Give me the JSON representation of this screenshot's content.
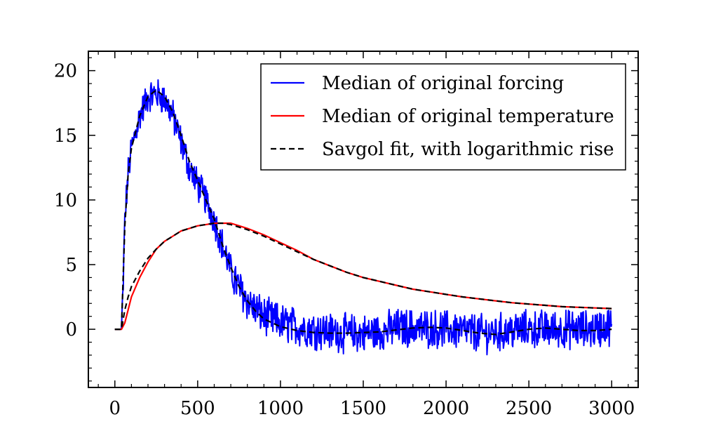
{
  "chart_data": {
    "type": "line",
    "title": "",
    "xlabel": "",
    "ylabel": "",
    "xlim": [
      -160,
      3160
    ],
    "ylim": [
      -4.5,
      21.5
    ],
    "x_ticks": [
      0,
      500,
      1000,
      1500,
      2000,
      2500,
      3000
    ],
    "x_tick_labels": [
      "0",
      "500",
      "1000",
      "1500",
      "2000",
      "2500",
      "3000"
    ],
    "y_ticks": [
      0,
      5,
      10,
      15,
      20
    ],
    "y_tick_labels": [
      "0",
      "5",
      "10",
      "15",
      "20"
    ],
    "grid": false,
    "legend_position": "top-right",
    "series": [
      {
        "name": "Median of original forcing",
        "color": "#0000ff",
        "style": "solid",
        "noisy": true,
        "x": [
          0,
          40,
          50,
          60,
          80,
          100,
          150,
          200,
          250,
          300,
          350,
          400,
          450,
          500,
          550,
          600,
          650,
          700,
          750,
          800,
          850,
          900,
          1000,
          1100,
          1200,
          1300,
          1400,
          1500,
          1600,
          1700,
          1800,
          1900,
          2000,
          2100,
          2200,
          2300,
          2400,
          2500,
          2600,
          2700,
          2800,
          2900,
          3000
        ],
        "y": [
          0,
          0,
          3,
          8.5,
          12,
          14,
          16.5,
          18,
          18.2,
          17.8,
          16.5,
          14.5,
          12.5,
          11.2,
          10,
          8.5,
          6.5,
          4.5,
          3.2,
          2.2,
          1.5,
          1,
          0.5,
          0.2,
          0,
          -0.2,
          -0.3,
          -0.35,
          -0.2,
          0.1,
          0.1,
          0.05,
          0,
          -0.1,
          -0.3,
          -0.3,
          -0.1,
          0,
          0,
          0,
          0,
          0,
          0.3
        ]
      },
      {
        "name": "Median of original temperature",
        "color": "#ff0000",
        "style": "solid",
        "noisy": false,
        "x": [
          0,
          40,
          60,
          80,
          100,
          150,
          200,
          250,
          300,
          350,
          400,
          450,
          500,
          550,
          600,
          650,
          700,
          750,
          800,
          900,
          1000,
          1100,
          1200,
          1300,
          1400,
          1500,
          1600,
          1700,
          1800,
          1900,
          2000,
          2100,
          2200,
          2300,
          2400,
          2500,
          2600,
          2700,
          2800,
          2900,
          3000
        ],
        "y": [
          0,
          0,
          0.5,
          1.5,
          2.5,
          4,
          5.2,
          6.2,
          6.8,
          7.2,
          7.6,
          7.8,
          8,
          8.1,
          8.2,
          8.2,
          8.2,
          8,
          7.8,
          7.3,
          6.7,
          6.1,
          5.4,
          4.9,
          4.4,
          4,
          3.7,
          3.4,
          3.1,
          2.9,
          2.7,
          2.5,
          2.35,
          2.2,
          2.05,
          1.95,
          1.85,
          1.75,
          1.7,
          1.65,
          1.6
        ]
      },
      {
        "name": "Savgol fit, with logarithmic rise",
        "color": "#000000",
        "style": "dashed",
        "noisy": false,
        "x": [
          0,
          40,
          60,
          80,
          100,
          150,
          200,
          250,
          300,
          350,
          400,
          450,
          500,
          550,
          600,
          650,
          700,
          750,
          800,
          850,
          900,
          1000,
          1100,
          1200,
          1300,
          1400,
          1500,
          1600,
          1700,
          1800,
          1900,
          2000,
          2100,
          2200,
          2300,
          2400,
          2500,
          2600,
          2700,
          2800,
          2900,
          3000
        ],
        "y": [
          0,
          0,
          8,
          12,
          14,
          16.5,
          18,
          18.5,
          18,
          16.8,
          15,
          13,
          11.5,
          10,
          8.5,
          6.5,
          4.8,
          3.3,
          2.2,
          1.4,
          0.8,
          0.2,
          -0.1,
          -0.25,
          -0.3,
          -0.3,
          -0.25,
          -0.2,
          -0.05,
          0.1,
          0.15,
          0.1,
          -0.1,
          -0.3,
          -0.4,
          -0.2,
          0,
          0.1,
          0,
          -0.1,
          -0.1,
          0
        ]
      },
      {
        "name": "",
        "color": "#000000",
        "style": "dashed",
        "noisy": false,
        "x": [
          0,
          40,
          60,
          80,
          100,
          150,
          200,
          250,
          300,
          350,
          400,
          450,
          500,
          550,
          600,
          650,
          700,
          750,
          800,
          900,
          1000,
          1100,
          1200,
          1300,
          1400,
          1500,
          1600,
          1700,
          1800,
          1900,
          2000,
          2100,
          2200,
          2300,
          2400,
          2500,
          2600,
          2700,
          2800,
          2900,
          3000
        ],
        "y": [
          0,
          0,
          1.5,
          2.5,
          3.3,
          4.5,
          5.5,
          6.2,
          6.8,
          7.2,
          7.6,
          7.8,
          8,
          8.1,
          8.2,
          8.2,
          8.1,
          7.9,
          7.7,
          7.2,
          6.6,
          6,
          5.4,
          4.9,
          4.4,
          4,
          3.7,
          3.4,
          3.1,
          2.9,
          2.7,
          2.5,
          2.35,
          2.2,
          2.05,
          1.95,
          1.85,
          1.75,
          1.7,
          1.65,
          1.6
        ]
      }
    ]
  }
}
